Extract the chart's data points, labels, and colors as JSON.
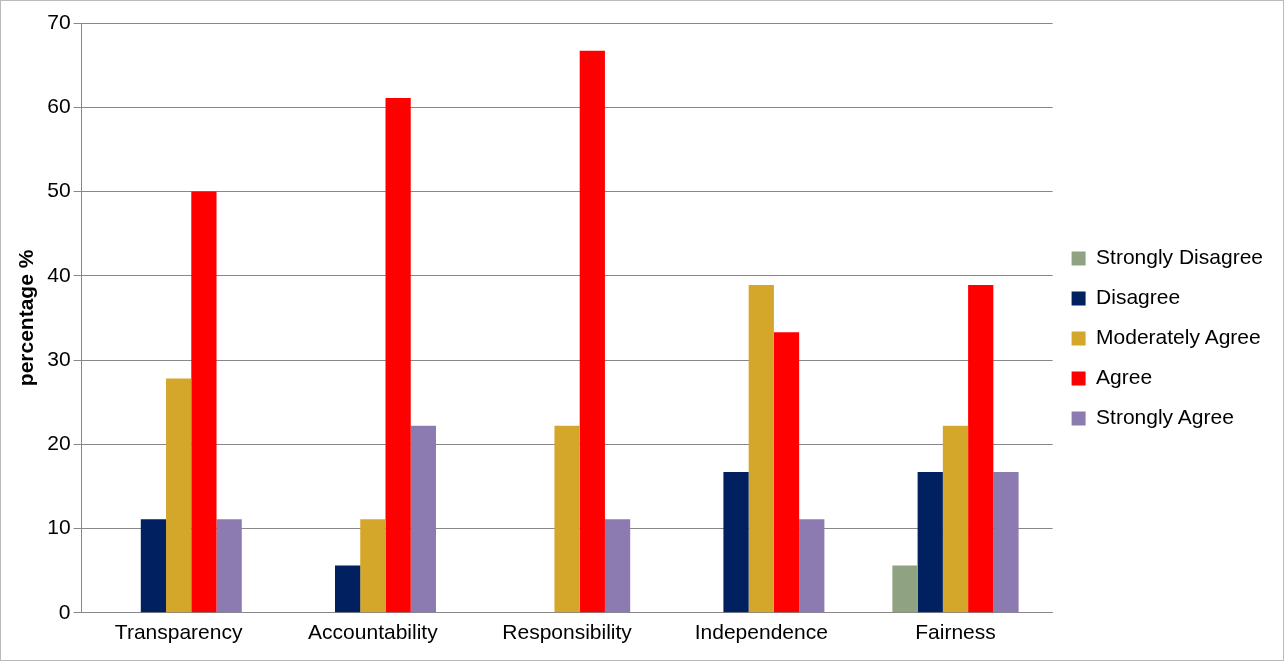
{
  "chart_data": {
    "type": "bar",
    "ylabel": "percentage %",
    "categories": [
      "Transparency",
      "Accountability",
      "Responsibility",
      "Independence",
      "Fairness"
    ],
    "series": [
      {
        "name": "Strongly Disagree",
        "color": "#8fa383",
        "values": [
          0,
          0,
          0,
          0,
          5.6
        ]
      },
      {
        "name": "Disagree",
        "color": "#002060",
        "values": [
          11.1,
          5.6,
          0,
          16.7,
          16.7
        ]
      },
      {
        "name": "Moderately Agree",
        "color": "#d4a62a",
        "values": [
          27.8,
          11.1,
          22.2,
          38.9,
          22.2
        ]
      },
      {
        "name": "Agree",
        "color": "#ff0000",
        "values": [
          50,
          61.1,
          66.7,
          33.3,
          38.9
        ]
      },
      {
        "name": "Strongly Agree",
        "color": "#8b7bb0",
        "values": [
          11.1,
          22.2,
          11.1,
          11.1,
          16.7
        ]
      }
    ],
    "ylim": [
      0,
      70
    ],
    "yticks": [
      0,
      10,
      20,
      30,
      40,
      50,
      60,
      70
    ],
    "grid": "y",
    "legend": "right"
  }
}
